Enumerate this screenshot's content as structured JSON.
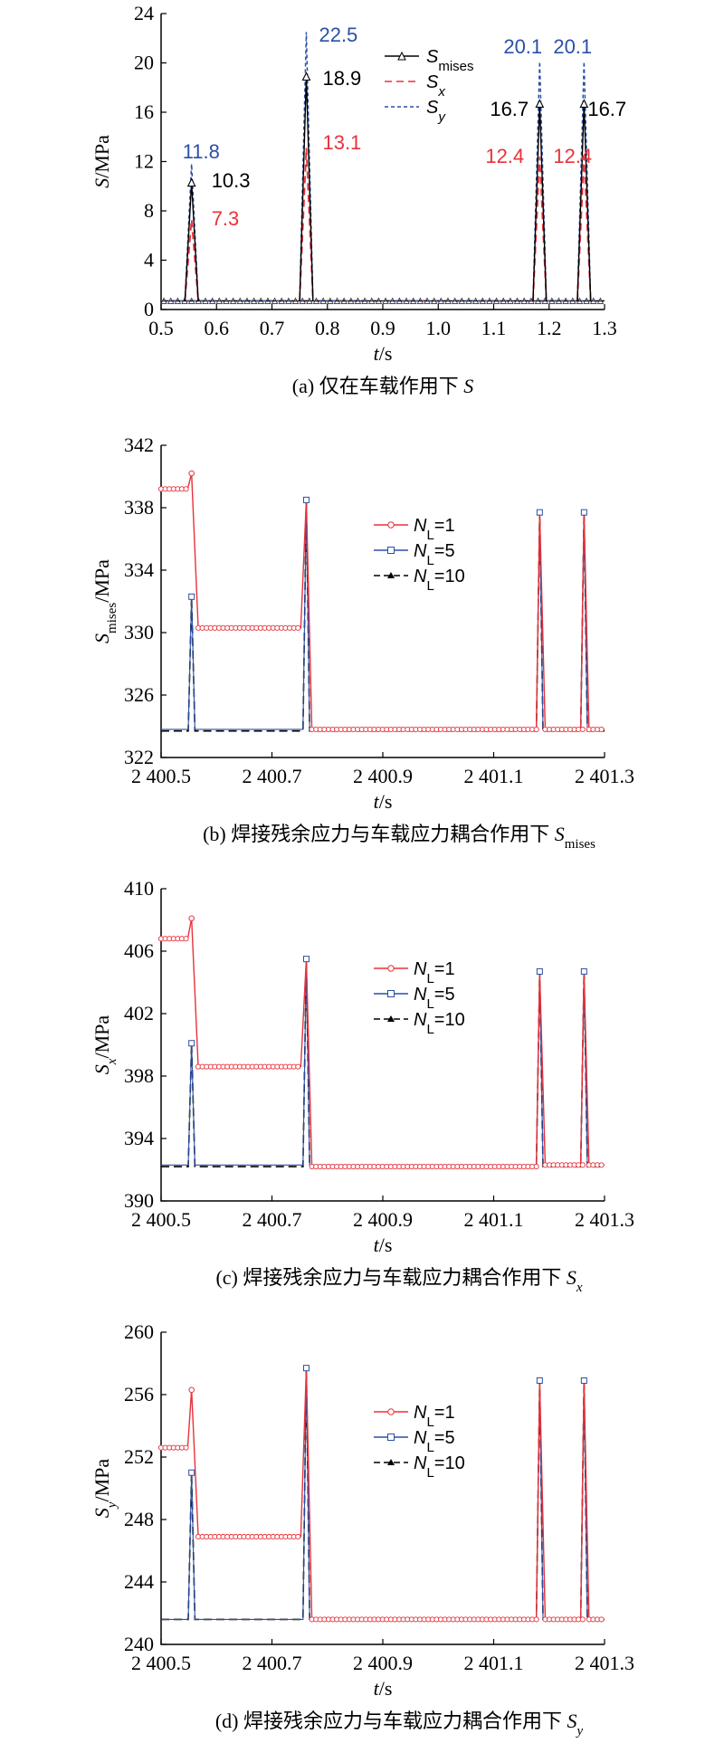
{
  "colors": {
    "mises": "#000000",
    "x": "#e8323a",
    "y": "#2a4fa8",
    "n1": "#e8323a",
    "n5": "#2a4fa8",
    "n10": "#000000"
  },
  "chart_data": [
    {
      "id": "a",
      "type": "line",
      "caption": "(a) 仅在车载作用下 S",
      "xlabel": "t/s",
      "ylabel": "S/MPa",
      "xlim": [
        0.5,
        1.3
      ],
      "ylim": [
        0,
        24
      ],
      "xticks": [
        "0.5",
        "0.6",
        "0.7",
        "0.8",
        "0.9",
        "1.0",
        "1.1",
        "1.2",
        "1.3"
      ],
      "yticks": [
        "0",
        "4",
        "8",
        "12",
        "16",
        "20",
        "24"
      ],
      "grid": false,
      "legend_position": "top-right",
      "legend": [
        "Smises",
        "Sx",
        "Sy"
      ],
      "baseline": 0.7,
      "peaks": [
        {
          "t": 0.555,
          "mises": 10.3,
          "x": 7.3,
          "y": 11.8
        },
        {
          "t": 0.762,
          "mises": 18.9,
          "x": 13.1,
          "y": 22.5
        },
        {
          "t": 1.183,
          "mises": 16.7,
          "x": 12.4,
          "y": 20.1
        },
        {
          "t": 1.263,
          "mises": 16.7,
          "x": 12.4,
          "y": 20.1
        }
      ],
      "annotations": [
        {
          "text": "11.8",
          "series": "y"
        },
        {
          "text": "10.3",
          "series": "mises"
        },
        {
          "text": "7.3",
          "series": "x"
        },
        {
          "text": "22.5",
          "series": "y"
        },
        {
          "text": "18.9",
          "series": "mises"
        },
        {
          "text": "13.1",
          "series": "x"
        },
        {
          "text": "20.1",
          "series": "y"
        },
        {
          "text": "16.7",
          "series": "mises"
        },
        {
          "text": "12.4",
          "series": "x"
        },
        {
          "text": "20.1",
          "series": "y"
        },
        {
          "text": "16.7",
          "series": "mises"
        },
        {
          "text": "12.4",
          "series": "x"
        }
      ]
    },
    {
      "id": "b",
      "type": "line",
      "caption": "(b) 焊接残余应力与车载应力耦合作用下 Smises",
      "xlabel": "t/s",
      "ylabel": "Smises/MPa",
      "xlim": [
        2400.5,
        2401.3
      ],
      "ylim": [
        322,
        342
      ],
      "xticks": [
        "2 400.5",
        "2 400.7",
        "2 400.9",
        "2 401.1",
        "2 401.3"
      ],
      "yticks": [
        "322",
        "326",
        "330",
        "334",
        "338",
        "342"
      ],
      "grid": false,
      "legend_position": "top-right",
      "legend": [
        "NL=1",
        "NL=5",
        "NL=10"
      ],
      "series": [
        {
          "key": "n1",
          "segments": [
            {
              "t0": 2400.5,
              "t1": 2400.548,
              "v": 339.2
            },
            {
              "t0": 2400.555,
              "t1": 2400.555,
              "v": 340.2
            },
            {
              "t0": 2400.567,
              "t1": 2400.752,
              "v": 330.3
            },
            {
              "t0": 2400.772,
              "t1": 2401.183,
              "v": 323.8
            },
            {
              "t0": 2401.193,
              "t1": 2401.263,
              "v": 323.8
            },
            {
              "t0": 2401.272,
              "t1": 2401.3,
              "v": 323.8
            }
          ],
          "peaks": [
            {
              "t": 2400.762,
              "v": 338.5
            },
            {
              "t": 2401.183,
              "v": 337.7
            },
            {
              "t": 2401.263,
              "v": 337.7
            }
          ]
        },
        {
          "key": "n5",
          "base": 323.8,
          "peaks": [
            {
              "t": 2400.555,
              "v": 332.3
            },
            {
              "t": 2400.762,
              "v": 338.5
            },
            {
              "t": 2401.183,
              "v": 337.7
            },
            {
              "t": 2401.263,
              "v": 337.7
            }
          ]
        },
        {
          "key": "n10",
          "base": 323.7,
          "peaks": [
            {
              "t": 2400.555,
              "v": 332.3
            },
            {
              "t": 2400.762,
              "v": 338.5
            },
            {
              "t": 2401.183,
              "v": 337.7
            },
            {
              "t": 2401.263,
              "v": 337.7
            }
          ]
        }
      ]
    },
    {
      "id": "c",
      "type": "line",
      "caption": "(c) 焊接残余应力与车载应力耦合作用下 Sx",
      "xlabel": "t/s",
      "ylabel": "Sx/MPa",
      "xlim": [
        2400.5,
        2401.3
      ],
      "ylim": [
        390,
        410
      ],
      "xticks": [
        "2 400.5",
        "2 400.7",
        "2 400.9",
        "2 401.1",
        "2 401.3"
      ],
      "yticks": [
        "390",
        "394",
        "398",
        "402",
        "406",
        "410"
      ],
      "grid": false,
      "legend_position": "top-right",
      "legend": [
        "NL=1",
        "NL=5",
        "NL=10"
      ],
      "series": [
        {
          "key": "n1",
          "segments": [
            {
              "t0": 2400.5,
              "t1": 2400.548,
              "v": 406.8
            },
            {
              "t0": 2400.555,
              "t1": 2400.555,
              "v": 408.1
            },
            {
              "t0": 2400.567,
              "t1": 2400.752,
              "v": 398.6
            },
            {
              "t0": 2400.772,
              "t1": 2401.183,
              "v": 392.2
            },
            {
              "t0": 2401.193,
              "t1": 2401.263,
              "v": 392.3
            },
            {
              "t0": 2401.272,
              "t1": 2401.3,
              "v": 392.3
            }
          ],
          "peaks": [
            {
              "t": 2400.762,
              "v": 405.5
            },
            {
              "t": 2401.183,
              "v": 404.7
            },
            {
              "t": 2401.263,
              "v": 404.7
            }
          ]
        },
        {
          "key": "n5",
          "base": 392.3,
          "peaks": [
            {
              "t": 2400.555,
              "v": 400.1
            },
            {
              "t": 2400.762,
              "v": 405.5
            },
            {
              "t": 2401.183,
              "v": 404.7
            },
            {
              "t": 2401.263,
              "v": 404.7
            }
          ]
        },
        {
          "key": "n10",
          "base": 392.2,
          "peaks": [
            {
              "t": 2400.555,
              "v": 400.1
            },
            {
              "t": 2400.762,
              "v": 405.5
            },
            {
              "t": 2401.183,
              "v": 404.7
            },
            {
              "t": 2401.263,
              "v": 404.7
            }
          ]
        }
      ]
    },
    {
      "id": "d",
      "type": "line",
      "caption": "(d) 焊接残余应力与车载应力耦合作用下 Sy",
      "xlabel": "t/s",
      "ylabel": "Sy/MPa",
      "xlim": [
        2400.5,
        2401.3
      ],
      "ylim": [
        240,
        260
      ],
      "xticks": [
        "2 400.5",
        "2 400.7",
        "2 400.9",
        "2 401.1",
        "2 401.3"
      ],
      "yticks": [
        "240",
        "244",
        "248",
        "252",
        "256",
        "260"
      ],
      "grid": false,
      "legend_position": "top-right",
      "legend": [
        "NL=1",
        "NL=5",
        "NL=10"
      ],
      "series": [
        {
          "key": "n1",
          "segments": [
            {
              "t0": 2400.5,
              "t1": 2400.548,
              "v": 252.6
            },
            {
              "t0": 2400.555,
              "t1": 2400.555,
              "v": 256.3
            },
            {
              "t0": 2400.567,
              "t1": 2400.752,
              "v": 246.9
            },
            {
              "t0": 2400.772,
              "t1": 2401.183,
              "v": 241.6
            },
            {
              "t0": 2401.193,
              "t1": 2401.263,
              "v": 241.6
            },
            {
              "t0": 2401.272,
              "t1": 2401.3,
              "v": 241.6
            }
          ],
          "peaks": [
            {
              "t": 2400.762,
              "v": 257.7
            },
            {
              "t": 2401.183,
              "v": 256.9
            },
            {
              "t": 2401.263,
              "v": 256.9
            }
          ]
        },
        {
          "key": "n5",
          "base": 241.6,
          "peaks": [
            {
              "t": 2400.555,
              "v": 251.0
            },
            {
              "t": 2400.762,
              "v": 257.7
            },
            {
              "t": 2401.183,
              "v": 256.9
            },
            {
              "t": 2401.263,
              "v": 256.9
            }
          ]
        },
        {
          "key": "n10",
          "base": 241.6,
          "peaks": [
            {
              "t": 2400.555,
              "v": 251.0
            },
            {
              "t": 2400.762,
              "v": 257.7
            },
            {
              "t": 2401.183,
              "v": 256.9
            },
            {
              "t": 2401.263,
              "v": 256.9
            }
          ]
        }
      ]
    }
  ]
}
